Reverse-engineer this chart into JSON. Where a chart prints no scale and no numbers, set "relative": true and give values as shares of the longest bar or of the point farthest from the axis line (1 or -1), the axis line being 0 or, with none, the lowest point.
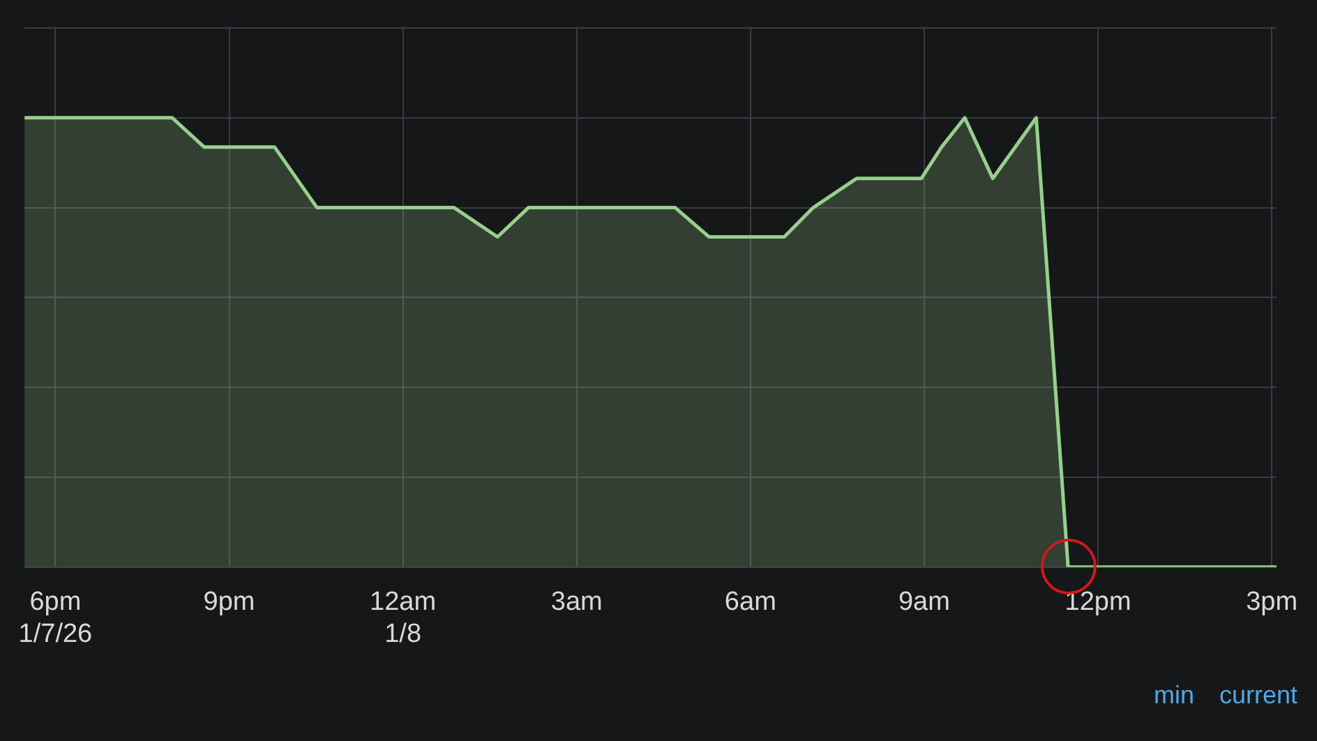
{
  "chart_data": {
    "type": "area",
    "relative": true,
    "x": [
      "--01-07T17:28",
      "--01-07T20:01",
      "--01-07T20:34",
      "--01-07T21:47",
      "--01-07T22:31",
      "--01-08T00:53",
      "--01-08T01:38",
      "--01-08T02:10",
      "--01-08T04:42",
      "--01-08T05:17",
      "--01-08T06:35",
      "--01-08T07:05",
      "--01-08T07:50",
      "--01-08T08:57",
      "--01-08T09:18",
      "--01-08T09:42",
      "--01-08T10:11",
      "--01-08T10:56",
      "--01-08T11:29",
      "--01-08T15:05"
    ],
    "series": [
      {
        "color": "#96d08c",
        "values": [
          1,
          1,
          0.935,
          0.935,
          0.8,
          0.8,
          0.735,
          0.8,
          0.8,
          0.735,
          0.735,
          0.8,
          0.865,
          0.865,
          0.935,
          1,
          0.865,
          1,
          0,
          0
        ]
      }
    ],
    "xlim": [
      "--01-07T17:28",
      "--01-08T15:05"
    ],
    "xticks": [
      {
        "value": "--01-07T18:00",
        "label": "6pm\n1/7/26"
      },
      {
        "value": "--01-07T21:00",
        "label": "9pm"
      },
      {
        "value": "--01-08T00:00",
        "label": "12am\n1/8"
      },
      {
        "value": "--01-08T03:00",
        "label": "3am"
      },
      {
        "value": "--01-08T06:00",
        "label": "6am"
      },
      {
        "value": "--01-08T09:00",
        "label": "9am"
      },
      {
        "value": "--01-08T12:00",
        "label": "12pm"
      },
      {
        "value": "--01-08T15:00",
        "label": "3pm"
      }
    ],
    "grid": true,
    "legend": false,
    "marker": "none",
    "line_style": "solid",
    "annotations": [
      "min",
      "current"
    ]
  }
}
